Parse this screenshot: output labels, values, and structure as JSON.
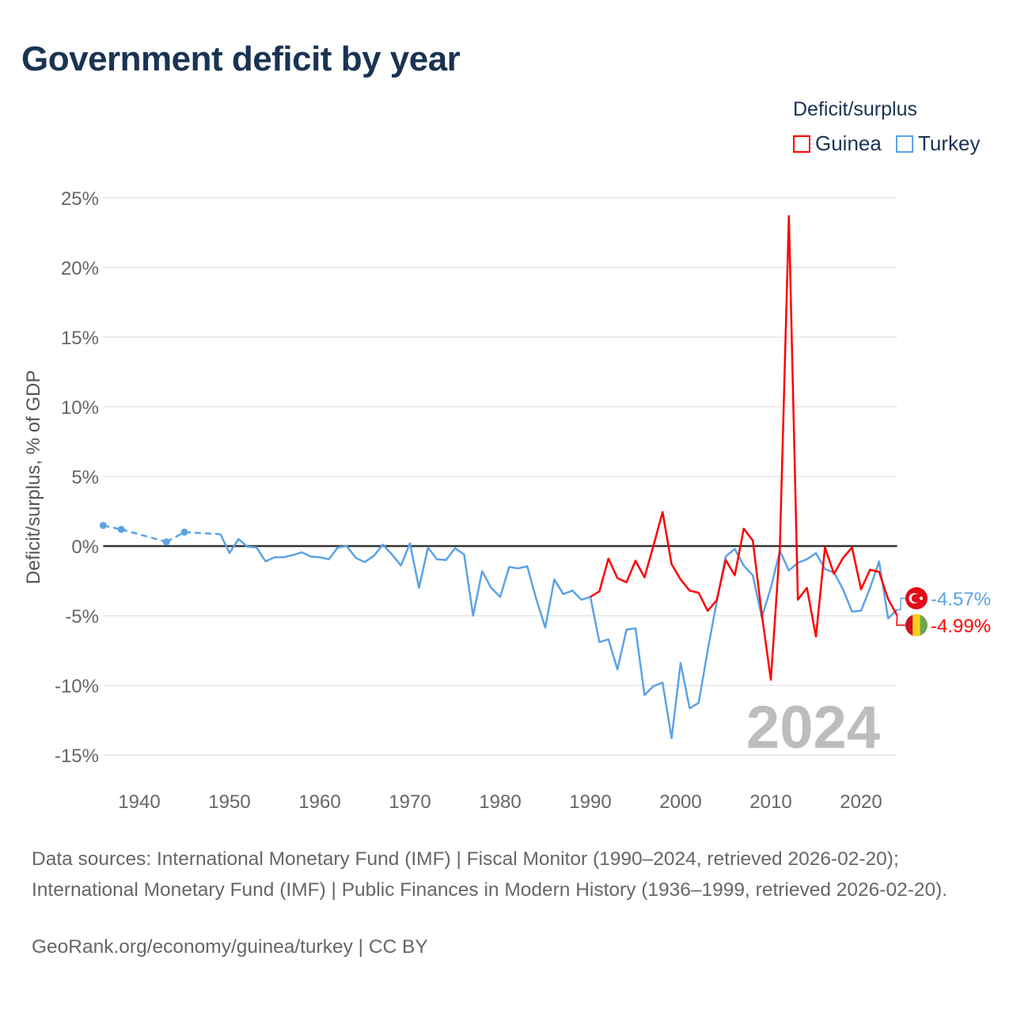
{
  "title": "Government deficit by year",
  "legend": {
    "title": "Deficit/surplus",
    "items": [
      {
        "name": "Guinea",
        "color": "#ff0000"
      },
      {
        "name": "Turkey",
        "color": "#5ba3e6"
      }
    ]
  },
  "chart_data": {
    "type": "line",
    "title": "Government deficit by year",
    "xlabel": "",
    "ylabel": "Deficit/surplus, % of GDP",
    "xlim": [
      1936,
      2024
    ],
    "ylim": [
      -16.8,
      25
    ],
    "yticks": [
      25,
      20,
      15,
      10,
      5,
      0,
      -5,
      -10,
      -15
    ],
    "ytick_labels": [
      "25%",
      "20%",
      "15%",
      "10%",
      "5%",
      "0%",
      "-5%",
      "-10%",
      "-15%"
    ],
    "xticks": [
      1940,
      1950,
      1960,
      1970,
      1980,
      1990,
      2000,
      2010,
      2020
    ],
    "xtick_labels": [
      "1940",
      "1950",
      "1960",
      "1970",
      "1980",
      "1990",
      "2000",
      "2010",
      "2020"
    ],
    "grid": true,
    "legend_position": "top-right",
    "annotation": "2024",
    "series": [
      {
        "name": "Turkey",
        "color": "#5ba3e6",
        "end_label": "-4.57%",
        "x": [
          1936,
          1938,
          1943,
          1945,
          1949,
          1950,
          1951,
          1952,
          1953,
          1954,
          1955,
          1956,
          1957,
          1958,
          1959,
          1960,
          1961,
          1962,
          1963,
          1964,
          1965,
          1966,
          1967,
          1968,
          1969,
          1970,
          1971,
          1972,
          1973,
          1974,
          1975,
          1976,
          1977,
          1978,
          1979,
          1980,
          1981,
          1982,
          1983,
          1984,
          1985,
          1986,
          1987,
          1988,
          1989,
          1990,
          1991,
          1992,
          1993,
          1994,
          1995,
          1996,
          1997,
          1998,
          1999,
          2000,
          2001,
          2002,
          2003,
          2004,
          2005,
          2006,
          2007,
          2008,
          2009,
          2010,
          2011,
          2012,
          2013,
          2014,
          2015,
          2016,
          2017,
          2018,
          2019,
          2020,
          2021,
          2022,
          2023,
          2024
        ],
        "y": [
          1.48,
          1.2,
          0.3,
          1.0,
          0.85,
          -0.5,
          0.5,
          -0.05,
          -0.1,
          -1.1,
          -0.8,
          -0.8,
          -0.65,
          -0.45,
          -0.75,
          -0.8,
          -0.95,
          -0.1,
          0.0,
          -0.85,
          -1.15,
          -0.7,
          0.1,
          -0.6,
          -1.4,
          0.2,
          -3.0,
          -0.1,
          -0.95,
          -1.0,
          -0.15,
          -0.6,
          -5.0,
          -1.8,
          -3.0,
          -3.65,
          -1.5,
          -1.6,
          -1.45,
          -3.8,
          -5.85,
          -2.4,
          -3.45,
          -3.2,
          -3.85,
          -3.65,
          -6.9,
          -6.7,
          -8.85,
          -6.0,
          -5.9,
          -10.7,
          -10.05,
          -9.8,
          -13.8,
          -8.4,
          -11.65,
          -11.25,
          -7.5,
          -4.0,
          -0.75,
          -0.2,
          -1.4,
          -2.1,
          -5.1,
          -3.0,
          -0.35,
          -1.75,
          -1.2,
          -0.95,
          -0.5,
          -1.65,
          -1.9,
          -3.1,
          -4.7,
          -4.65,
          -3.0,
          -1.1,
          -5.2,
          -4.57
        ]
      },
      {
        "name": "Guinea",
        "color": "#ff0000",
        "end_label": "-4.99%",
        "x": [
          1990,
          1991,
          1992,
          1993,
          1994,
          1995,
          1996,
          1997,
          1998,
          1999,
          2000,
          2001,
          2002,
          2003,
          2004,
          2005,
          2006,
          2007,
          2008,
          2009,
          2010,
          2011,
          2012,
          2013,
          2014,
          2015,
          2016,
          2017,
          2018,
          2019,
          2020,
          2021,
          2022,
          2023,
          2024
        ],
        "y": [
          -3.65,
          -3.25,
          -0.9,
          -2.3,
          -2.6,
          -1.05,
          -2.25,
          0.05,
          2.45,
          -1.3,
          -2.4,
          -3.2,
          -3.35,
          -4.65,
          -3.9,
          -1.0,
          -2.1,
          1.25,
          0.4,
          -4.9,
          -9.6,
          -0.1,
          23.7,
          -3.85,
          -3.0,
          -6.5,
          -0.1,
          -2.0,
          -0.85,
          -0.1,
          -3.1,
          -1.7,
          -1.85,
          -3.8,
          -4.99
        ]
      }
    ]
  },
  "footer": {
    "sources": "Data sources: International Monetary Fund (IMF) | Fiscal Monitor (1990–2024, retrieved 2026-02-20); International Monetary Fund (IMF) | Public Finances in Modern History (1936–1999, retrieved 2026-02-20).",
    "credit": "GeoRank.org/economy/guinea/turkey | CC BY"
  }
}
